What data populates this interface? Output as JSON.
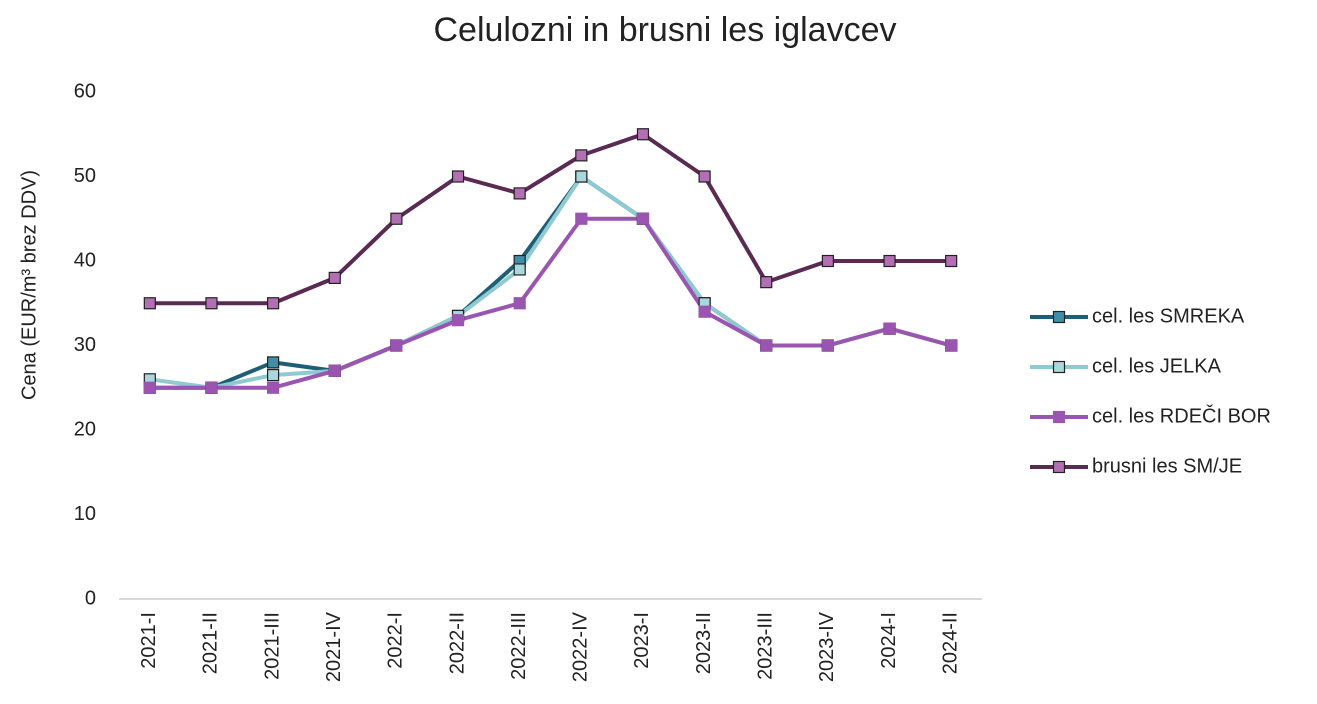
{
  "chart_data": {
    "type": "line",
    "title": "Celulozni in brusni les iglavcev",
    "y_label": "Cena (EUR/m³ brez DDV)",
    "categories": [
      "2021-I",
      "2021-II",
      "2021-III",
      "2021-IV",
      "2022-I",
      "2022-II",
      "2022-III",
      "2022-IV",
      "2023-I",
      "2023-II",
      "2023-III",
      "2023-IV",
      "2024-I",
      "2024-II"
    ],
    "series": [
      {
        "name": "cel. les SMREKA",
        "color": "#1e5f78",
        "marker_color": "#3f8fa8",
        "values": [
          25,
          25,
          28,
          27,
          30,
          33.5,
          40,
          50,
          45,
          35,
          30,
          30,
          32,
          30
        ]
      },
      {
        "name": "cel. les JELKA",
        "color": "#8ecad0",
        "marker_color": "#a9d8dc",
        "values": [
          26,
          25,
          26.5,
          27,
          30,
          33.5,
          39,
          50,
          45,
          35,
          30,
          30,
          32,
          30
        ]
      },
      {
        "name": "cel. les RDEČI BOR",
        "color": "#9a55b0",
        "marker_color": "#9a55b0",
        "values": [
          25,
          25,
          25,
          27,
          30,
          33,
          35,
          45,
          45,
          34,
          30,
          30,
          32,
          30
        ]
      },
      {
        "name": "brusni les SM/JE",
        "color": "#5a2a52",
        "marker_color": "#b36fb3",
        "values": [
          35,
          35,
          35,
          38,
          45,
          50,
          48,
          52.5,
          55,
          50,
          37.5,
          40,
          40,
          40
        ]
      }
    ],
    "ylim": [
      0,
      60
    ],
    "yticks": [
      0,
      10,
      20,
      30,
      40,
      50,
      60
    ],
    "grid": false,
    "legend": "right"
  }
}
